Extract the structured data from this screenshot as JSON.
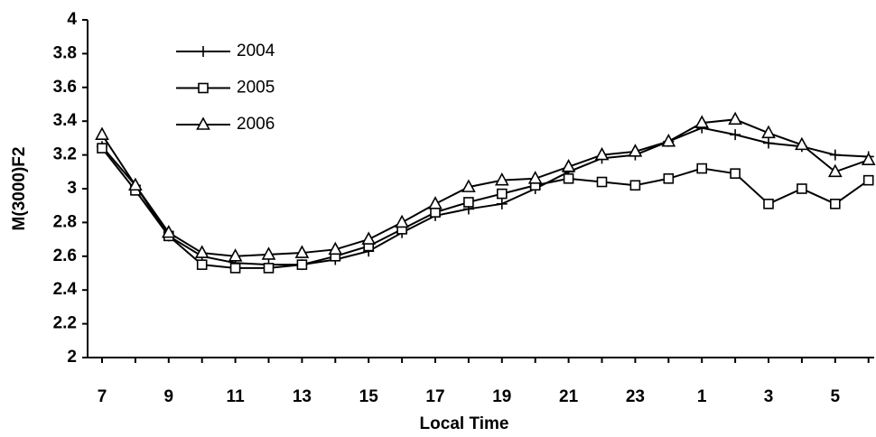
{
  "chart_data": {
    "type": "line",
    "xlabel": "Local Time",
    "ylabel": "M(3000)F2",
    "categories": [
      "7",
      null,
      "9",
      null,
      "11",
      null,
      "13",
      null,
      "15",
      null,
      "17",
      null,
      "19",
      null,
      "21",
      null,
      "23",
      null,
      "1",
      null,
      "3",
      null,
      "5",
      null
    ],
    "series": [
      {
        "name": "2004",
        "color": "#000000",
        "marker": "plus",
        "values": [
          3.25,
          3.02,
          2.72,
          2.6,
          2.56,
          2.55,
          2.55,
          2.58,
          2.63,
          2.74,
          2.84,
          2.88,
          2.91,
          3.0,
          3.1,
          3.18,
          3.2,
          3.28,
          3.36,
          3.32,
          3.27,
          3.25,
          3.2,
          3.19
        ]
      },
      {
        "name": "2005",
        "color": "#000000",
        "marker": "square",
        "values": [
          3.24,
          2.99,
          2.72,
          2.55,
          2.53,
          2.53,
          2.55,
          2.6,
          2.66,
          2.76,
          2.86,
          2.92,
          2.97,
          3.02,
          3.06,
          3.04,
          3.02,
          3.06,
          3.12,
          3.09,
          2.91,
          3.0,
          2.91,
          3.05
        ]
      },
      {
        "name": "2006",
        "color": "#000000",
        "marker": "triangle",
        "values": [
          3.32,
          3.02,
          2.74,
          2.62,
          2.6,
          2.61,
          2.62,
          2.64,
          2.7,
          2.8,
          2.91,
          3.01,
          3.05,
          3.06,
          3.13,
          3.2,
          3.22,
          3.28,
          3.39,
          3.41,
          3.33,
          3.26,
          3.1,
          3.17
        ]
      }
    ],
    "ylim": [
      2,
      4
    ],
    "yticks": [
      2,
      2.2,
      2.4,
      2.6,
      2.8,
      3,
      3.2,
      3.4,
      3.6,
      3.8,
      4
    ],
    "legend": "upper-left",
    "grid": false
  }
}
